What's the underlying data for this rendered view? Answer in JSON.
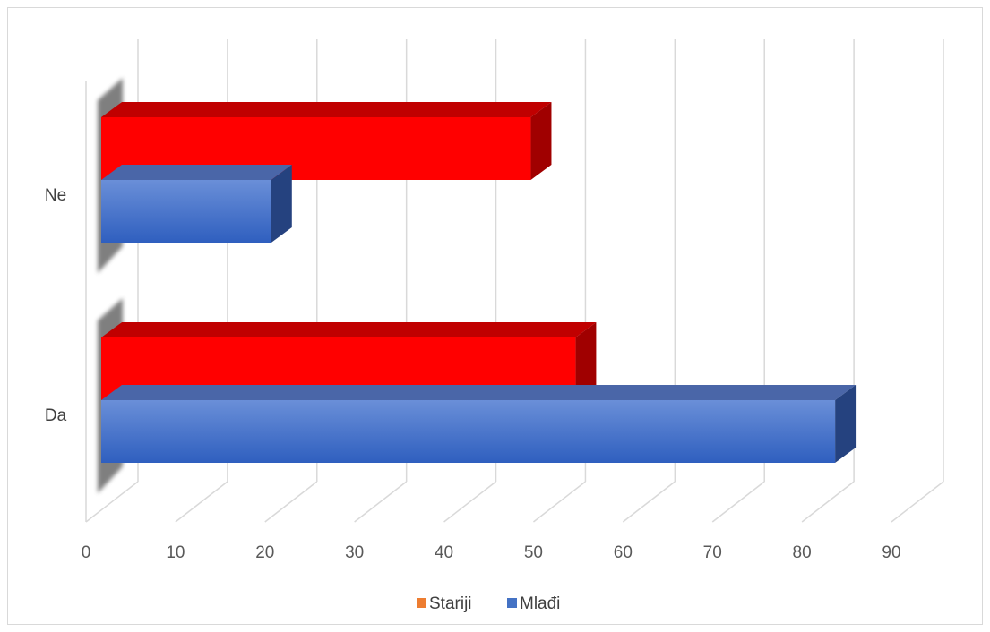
{
  "chart_data": {
    "type": "bar",
    "orientation": "horizontal",
    "style": "3d",
    "categories": [
      "Da",
      "Ne"
    ],
    "series": [
      {
        "name": "Stariji",
        "values": [
          53,
          48
        ],
        "color": "#ff0000",
        "legend_color": "#ed7d31"
      },
      {
        "name": "Mlađi",
        "values": [
          82,
          19
        ],
        "color": "#4472c4",
        "legend_color": "#4472c4"
      }
    ],
    "xticks": [
      "0",
      "10",
      "20",
      "30",
      "40",
      "50",
      "60",
      "70",
      "80",
      "90"
    ],
    "xlim": [
      0,
      90
    ],
    "grid": true,
    "legend_position": "bottom"
  }
}
